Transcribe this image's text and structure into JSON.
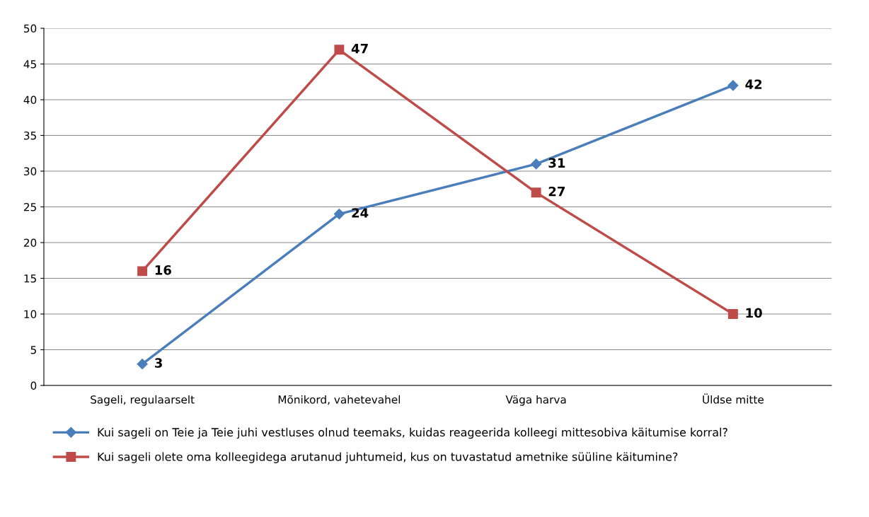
{
  "chart_data": {
    "type": "line",
    "categories": [
      "Sageli, regulaarselt",
      "Mõnikord, vahetevahel",
      "Väga harva",
      "Üldse mitte"
    ],
    "series": [
      {
        "name": "Kui sageli on Teie ja Teie juhi vestluses olnud teemaks, kuidas reageerida kolleegi mittesobiva käitumise korral?",
        "color": "#4a7ebb",
        "marker": "diamond",
        "values": [
          3,
          24,
          31,
          42
        ]
      },
      {
        "name": "Kui sageli olete oma kolleegidega arutanud juhtumeid, kus on tuvastatud ametnike süüline käitumine?",
        "color": "#be4b48",
        "marker": "square",
        "values": [
          16,
          47,
          27,
          10
        ]
      }
    ],
    "ylim": [
      0,
      50
    ],
    "yticks": [
      0,
      5,
      10,
      15,
      20,
      25,
      30,
      35,
      40,
      45,
      50
    ],
    "grid": "y",
    "legend": "bottom",
    "data_labels": true,
    "line_style": "solid"
  }
}
